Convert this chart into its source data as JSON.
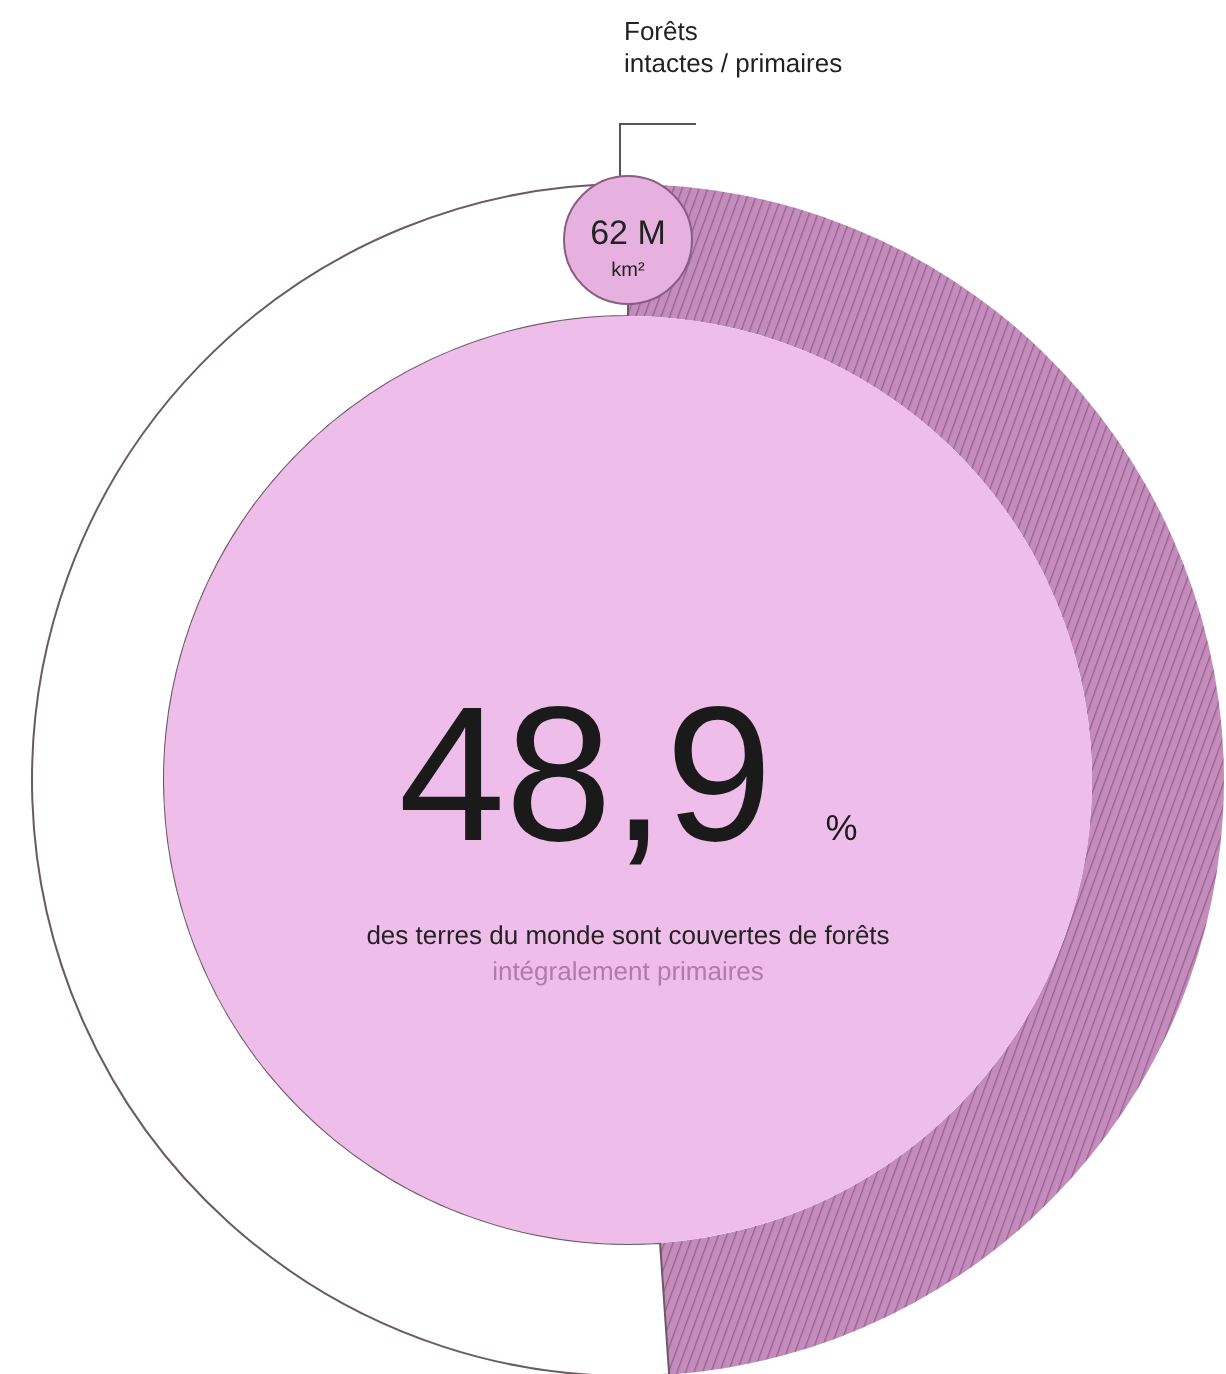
{
  "chart_data": {
    "type": "donut",
    "categories": [
      "Forêts intactes / primaires",
      null
    ],
    "values": [
      48.9,
      51.1
    ],
    "colors": [
      "#c58bbd",
      "#ffffff"
    ],
    "value_labels": [
      "48,9 %",
      null
    ],
    "annotations": [
      "62 M km²",
      "des terres du monde sont couvertes de forêts",
      "intégralement primaires"
    ]
  }
}
